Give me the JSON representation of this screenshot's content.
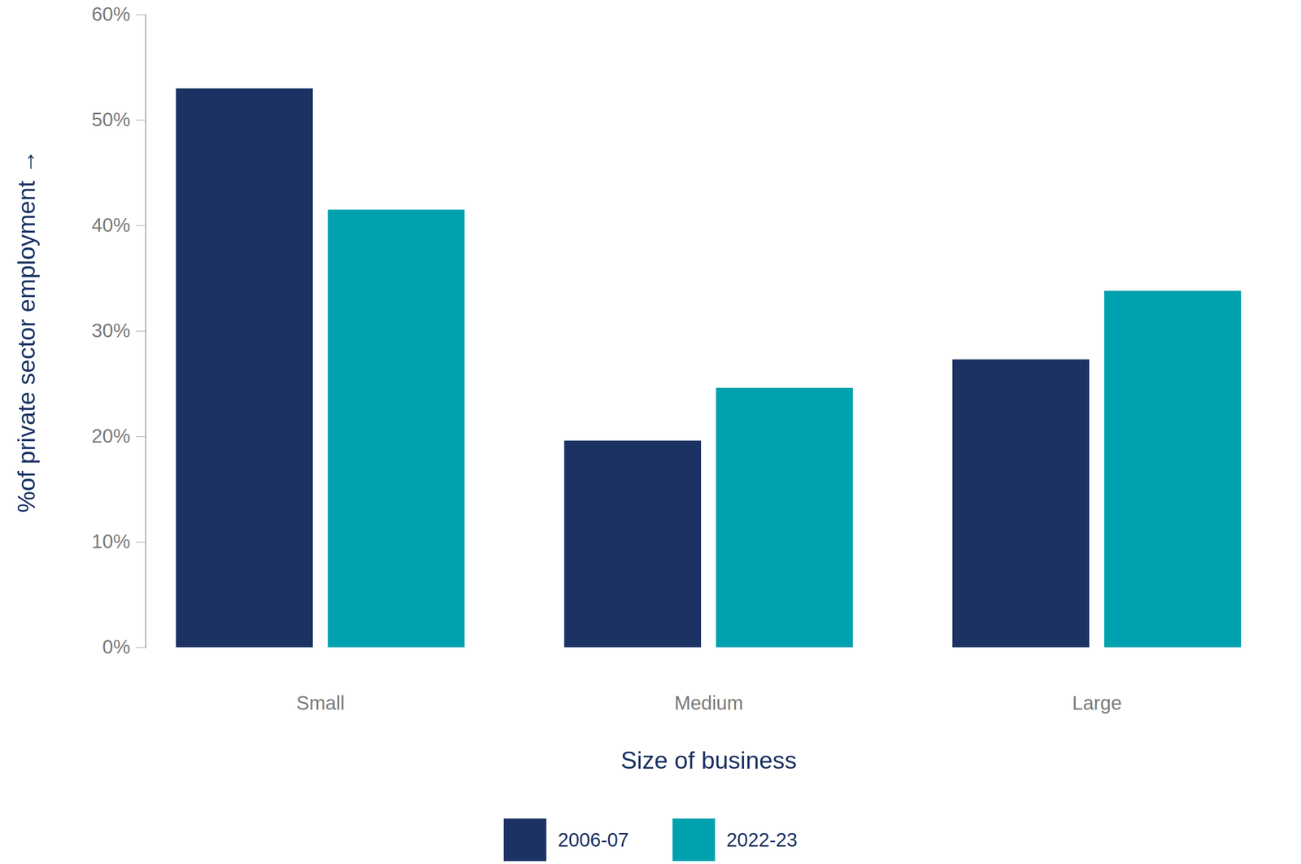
{
  "chart_data": {
    "type": "bar",
    "x_label": "Size of business",
    "y_label": "%of private sector employment",
    "categories": [
      "Small",
      "Medium",
      "Large"
    ],
    "series": [
      {
        "name": "2006-07",
        "color": "#1b3263",
        "values": [
          53,
          19.6,
          27.3
        ]
      },
      {
        "name": "2022-23",
        "color": "#00a1ae",
        "values": [
          41.5,
          24.6,
          33.8
        ]
      }
    ],
    "ylim": [
      0,
      60
    ],
    "yticks": [
      {
        "value": 0,
        "label": "0%"
      },
      {
        "value": 10,
        "label": "10%"
      },
      {
        "value": 20,
        "label": "20%"
      },
      {
        "value": 30,
        "label": "30%"
      },
      {
        "value": 40,
        "label": "40%"
      },
      {
        "value": 50,
        "label": "50%"
      },
      {
        "value": 60,
        "label": "60%"
      }
    ],
    "legend": "bottom"
  }
}
